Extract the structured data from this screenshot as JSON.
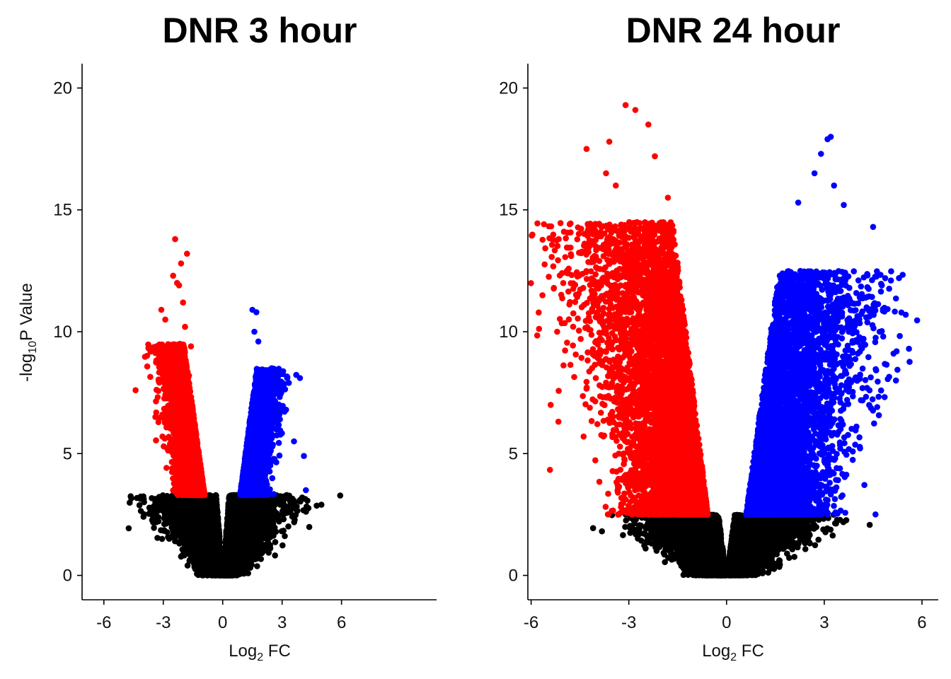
{
  "chart_data": [
    {
      "type": "scatter",
      "title": "DNR 3 hour",
      "xlabel": {
        "base": "Log",
        "sub": "2",
        "rest": " FC"
      },
      "ylabel": {
        "base": "-log",
        "sub": "10",
        "rest": "P Value"
      },
      "xlim": [
        -7.1,
        10.8
      ],
      "ylim": [
        -1.0,
        21.0
      ],
      "xticks": [
        -6,
        -3,
        0,
        3,
        6
      ],
      "yticks": [
        0,
        5,
        10,
        15,
        20
      ],
      "xtick_labels": [
        "-6",
        "-3",
        "0",
        "3",
        "6"
      ],
      "ytick_labels": [
        "0",
        "5",
        "10",
        "15",
        "20"
      ],
      "significance_threshold": 3.3,
      "colors": {
        "down": "#ff0000",
        "up": "#0000ff",
        "ns": "#000000"
      },
      "series": [
        {
          "name": "down",
          "color": "#ff0000",
          "x": [
            -2.4,
            -1.8,
            -2.1,
            -2.5,
            -3.1,
            -2.9,
            -2.0,
            -1.6,
            -2.6,
            -2.2,
            -1.9,
            -3.4,
            -4.4,
            -2.3,
            -2.8,
            -1.7
          ],
          "y": [
            13.8,
            13.2,
            12.8,
            12.3,
            10.9,
            10.5,
            11.2,
            9.4,
            9.0,
            11.9,
            10.2,
            6.5,
            7.6,
            12.0,
            8.5,
            8.2
          ]
        },
        {
          "name": "up",
          "color": "#0000ff",
          "x": [
            1.5,
            1.7,
            1.6,
            1.8,
            2.2,
            3.9,
            4.1,
            3.6,
            2.5,
            1.9,
            4.2,
            2.8,
            3.2
          ],
          "y": [
            10.9,
            10.8,
            10.0,
            9.6,
            8.2,
            8.1,
            4.9,
            5.5,
            6.1,
            7.5,
            3.5,
            6.6,
            6.8
          ]
        }
      ]
    },
    {
      "type": "scatter",
      "title": "DNR 24 hour",
      "xlabel": {
        "base": "Log",
        "sub": "2",
        "rest": " FC"
      },
      "ylabel": {
        "base": "",
        "sub": "",
        "rest": ""
      },
      "xlim": [
        -6.1,
        6.5
      ],
      "ylim": [
        -1.0,
        21.0
      ],
      "xticks": [
        -6,
        -3,
        0,
        3,
        6
      ],
      "yticks": [
        0,
        5,
        10,
        15,
        20
      ],
      "xtick_labels": [
        "-6",
        "-3",
        "0",
        "3",
        "6"
      ],
      "ytick_labels": [
        "0",
        "5",
        "10",
        "15",
        "20"
      ],
      "significance_threshold": 2.5,
      "colors": {
        "down": "#ff0000",
        "up": "#0000ff",
        "ns": "#000000"
      },
      "series": [
        {
          "name": "down",
          "color": "#ff0000",
          "x": [
            -3.1,
            -2.8,
            -2.4,
            -4.3,
            -5.3,
            -5.2,
            -3.6,
            -3.7,
            -4.9,
            -2.2,
            -1.8,
            -4.1,
            -3.4,
            -5.4
          ],
          "y": [
            19.3,
            19.1,
            18.5,
            17.5,
            11.8,
            10.0,
            17.8,
            16.5,
            12.5,
            17.2,
            15.5,
            14.0,
            16.0,
            7.0
          ]
        },
        {
          "name": "up",
          "color": "#0000ff",
          "x": [
            3.2,
            3.1,
            2.9,
            2.7,
            3.3,
            4.5,
            5.5,
            5.6,
            4.3,
            4.7,
            3.6,
            2.2,
            5.2
          ],
          "y": [
            18.0,
            17.9,
            17.3,
            16.5,
            16.0,
            14.3,
            10.7,
            9.3,
            11.0,
            10.0,
            15.2,
            15.3,
            8.0
          ]
        }
      ]
    }
  ]
}
